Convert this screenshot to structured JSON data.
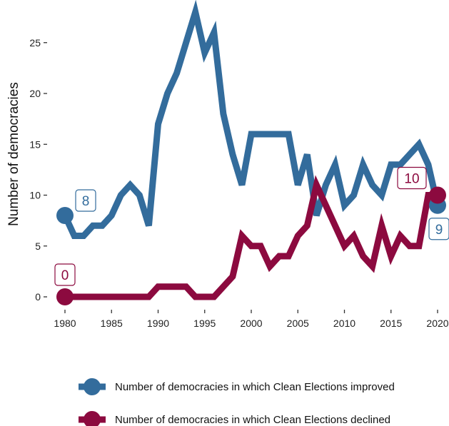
{
  "chart_data": {
    "type": "line",
    "title": "",
    "xlabel": "",
    "ylabel": "Number of democracies",
    "xlim": [
      1978,
      2022
    ],
    "ylim": [
      -1.5,
      28.5
    ],
    "x_ticks": [
      1980,
      1985,
      1990,
      1995,
      2000,
      2005,
      2010,
      2015,
      2020
    ],
    "y_ticks": [
      0,
      5,
      10,
      15,
      20,
      25
    ],
    "grid": false,
    "legend_position": "bottom",
    "x": [
      1980,
      1981,
      1982,
      1983,
      1984,
      1985,
      1986,
      1987,
      1988,
      1989,
      1990,
      1991,
      1992,
      1993,
      1994,
      1995,
      1996,
      1997,
      1998,
      1999,
      2000,
      2001,
      2002,
      2003,
      2004,
      2005,
      2006,
      2007,
      2008,
      2009,
      2010,
      2011,
      2012,
      2013,
      2014,
      2015,
      2016,
      2017,
      2018,
      2019,
      2020
    ],
    "series": [
      {
        "name": "Number of democracies in which Clean Elections improved",
        "color": "#336c9c",
        "values": [
          8,
          6,
          6,
          7,
          7,
          8,
          10,
          11,
          10,
          7,
          17,
          20,
          22,
          25,
          28,
          24,
          26,
          18,
          14,
          11,
          16,
          16,
          16,
          16,
          16,
          11,
          14,
          8,
          11,
          13,
          9,
          10,
          13,
          11,
          10,
          13,
          13,
          14,
          15,
          13,
          9
        ],
        "start_label": "8",
        "end_label": "9"
      },
      {
        "name": "Number of democracies in which Clean Elections declined",
        "color": "#8c0a3f",
        "values": [
          0,
          0,
          0,
          0,
          0,
          0,
          0,
          0,
          0,
          0,
          1,
          1,
          1,
          1,
          0,
          0,
          0,
          1,
          2,
          6,
          5,
          5,
          3,
          4,
          4,
          6,
          7,
          11,
          9,
          7,
          5,
          6,
          4,
          3,
          7,
          4,
          6,
          5,
          5,
          10,
          10
        ],
        "start_label": "0",
        "end_label": "10"
      }
    ]
  }
}
